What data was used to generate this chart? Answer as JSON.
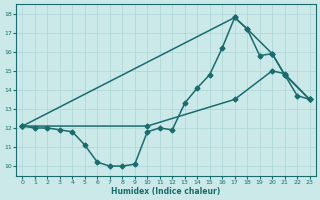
{
  "xlabel": "Humidex (Indice chaleur)",
  "xlim": [
    -0.5,
    23.5
  ],
  "ylim": [
    9.5,
    18.5
  ],
  "yticks": [
    10,
    11,
    12,
    13,
    14,
    15,
    16,
    17,
    18
  ],
  "xticks": [
    0,
    1,
    2,
    3,
    4,
    5,
    6,
    7,
    8,
    9,
    10,
    11,
    12,
    13,
    14,
    15,
    16,
    17,
    18,
    19,
    20,
    21,
    22,
    23
  ],
  "bg_color": "#cce9ea",
  "line_color": "#1a6b6b",
  "grid_color": "#aad4d6",
  "line1_x": [
    0,
    1,
    2,
    3,
    4,
    5,
    6,
    7,
    8,
    9,
    10,
    11,
    12,
    13,
    14,
    15,
    16,
    17,
    18,
    19,
    20,
    21,
    22,
    23
  ],
  "line1_y": [
    12.1,
    12.0,
    12.0,
    11.9,
    11.8,
    11.1,
    10.2,
    10.0,
    10.0,
    10.1,
    11.8,
    12.0,
    11.9,
    13.3,
    14.1,
    14.8,
    16.2,
    17.8,
    17.2,
    15.8,
    15.9,
    14.8,
    13.7,
    13.5
  ],
  "line2_x": [
    0,
    17,
    18,
    20,
    21,
    23
  ],
  "line2_y": [
    12.1,
    17.8,
    17.2,
    15.9,
    14.8,
    13.5
  ],
  "line3_x": [
    0,
    10,
    17,
    20,
    21,
    23
  ],
  "line3_y": [
    12.1,
    12.1,
    13.5,
    15.0,
    14.85,
    13.5
  ],
  "marker_size": 2.5,
  "linewidth": 1.1
}
